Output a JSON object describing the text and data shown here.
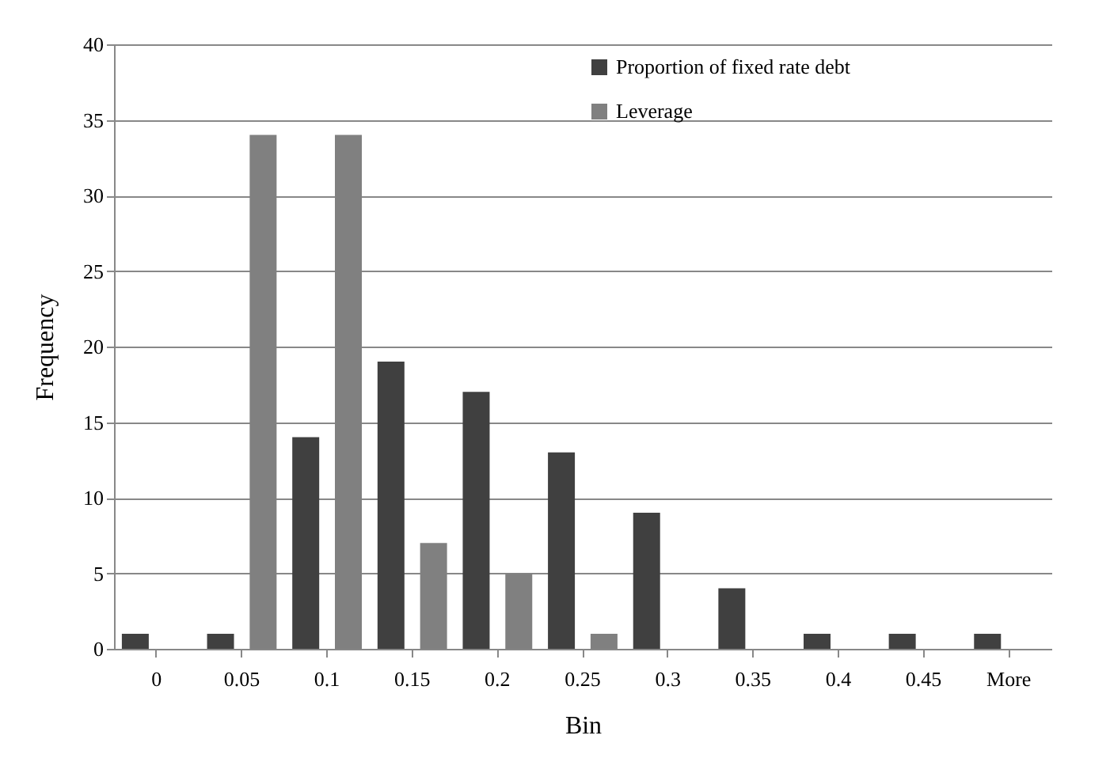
{
  "chart_data": {
    "type": "bar",
    "xlabel": "Bin",
    "ylabel": "Frequency",
    "categories": [
      "0",
      "0.05",
      "0.1",
      "0.15",
      "0.2",
      "0.25",
      "0.3",
      "0.35",
      "0.4",
      "0.45",
      "More"
    ],
    "series": [
      {
        "name": "Proportion of fixed rate debt",
        "color": "#404040",
        "values": [
          1,
          1,
          14,
          19,
          17,
          13,
          9,
          4,
          1,
          1,
          1
        ]
      },
      {
        "name": "Leverage",
        "color": "#808080",
        "values": [
          0,
          34,
          34,
          7,
          5,
          1,
          0,
          0,
          0,
          0,
          0
        ]
      }
    ],
    "ylim": [
      0,
      40
    ],
    "yticks": [
      0,
      5,
      10,
      15,
      20,
      25,
      30,
      35,
      40
    ],
    "grid": "y",
    "legend": "top right"
  }
}
